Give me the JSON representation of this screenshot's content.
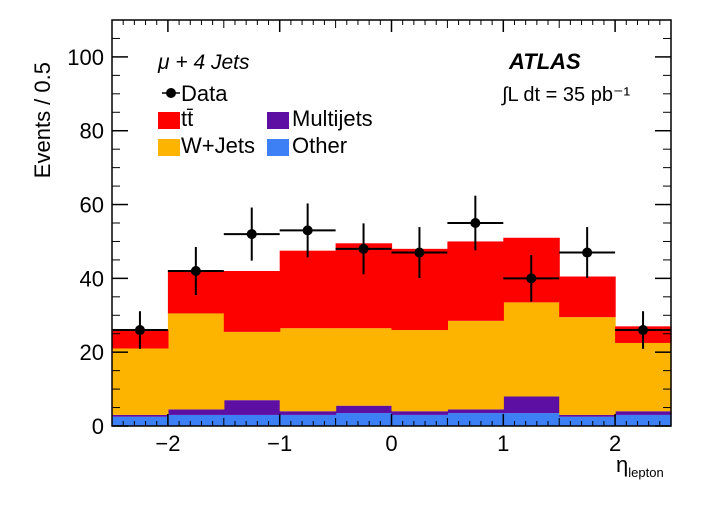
{
  "chart_data": {
    "type": "stacked-histogram",
    "xlabel": "η",
    "xlabel_sub": "lepton",
    "ylabel": "Events / 0.5",
    "xlim": [
      -2.5,
      2.5
    ],
    "ylim": [
      0,
      110
    ],
    "x_ticks": [
      -2,
      -1,
      0,
      1,
      2
    ],
    "x_tick_labels": [
      "−2",
      "−1",
      "0",
      "1",
      "2"
    ],
    "y_ticks": [
      0,
      20,
      40,
      60,
      80,
      100
    ],
    "y_tick_labels": [
      "0",
      "20",
      "40",
      "60",
      "80",
      "100"
    ],
    "bin_edges": [
      -2.5,
      -2.0,
      -1.5,
      -1.0,
      -0.5,
      0.0,
      0.5,
      1.0,
      1.5,
      2.0,
      2.5
    ],
    "series": [
      {
        "name": "Other",
        "color": "#3d7ff5",
        "values": [
          2.5,
          3.0,
          3.0,
          3.0,
          3.5,
          3.0,
          3.5,
          3.5,
          2.5,
          3.0
        ]
      },
      {
        "name": "Multijets",
        "color": "#5d0ea3",
        "values": [
          0.5,
          1.5,
          4.0,
          1.0,
          2.0,
          1.0,
          1.0,
          4.5,
          0.5,
          1.0
        ]
      },
      {
        "name": "W+Jets",
        "color": "#fcb400",
        "values": [
          18.0,
          26.0,
          18.5,
          22.5,
          21.0,
          22.0,
          24.0,
          25.5,
          26.5,
          18.5
        ]
      },
      {
        "name": "tt̄",
        "color": "#fd0000",
        "values": [
          5.0,
          11.5,
          16.5,
          21.0,
          23.0,
          22.0,
          21.5,
          17.5,
          11.0,
          4.5
        ]
      }
    ],
    "data_points": {
      "name": "Data",
      "x": [
        -2.25,
        -1.75,
        -1.25,
        -0.75,
        -0.25,
        0.25,
        0.75,
        1.25,
        1.75,
        2.25
      ],
      "y": [
        26,
        42,
        52,
        53,
        48,
        47,
        55,
        40,
        47,
        26
      ],
      "err": [
        5.1,
        6.5,
        7.2,
        7.3,
        6.9,
        6.9,
        7.4,
        6.3,
        6.9,
        5.1
      ]
    },
    "legend": {
      "entries": [
        "Data",
        "tt̄",
        "W+Jets",
        "Multijets",
        "Other"
      ],
      "placement": "top-left"
    },
    "annotations": {
      "channel": "μ + 4 Jets",
      "experiment": "ATLAS",
      "luminosity": "∫L dt = 35 pb⁻¹"
    }
  }
}
